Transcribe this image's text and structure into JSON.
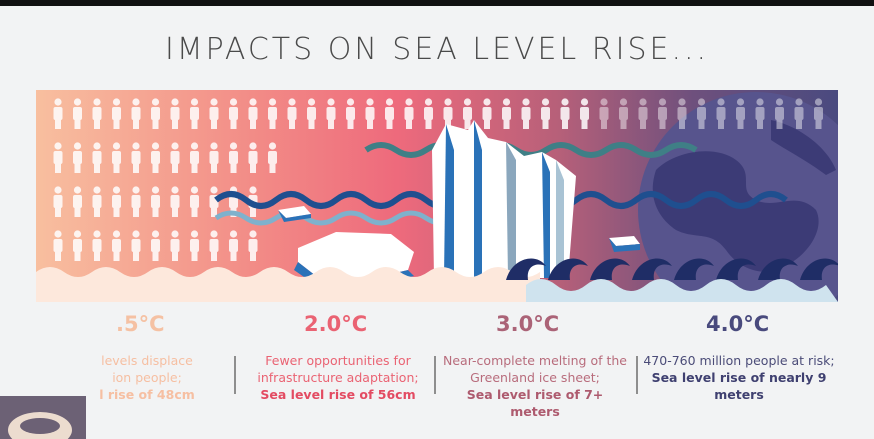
{
  "title": "IMPACTS ON SEA LEVEL RISE...",
  "colors": {
    "peach": "#f6b69a",
    "pink": "#ee6a7c",
    "mauve": "#a9607a",
    "indigo": "#4a4a7f",
    "wave_dark": "#1f2d66",
    "wave_light": "#cfe3ee"
  },
  "scenarios": [
    {
      "temp": ".5°C",
      "lines": [
        "levels displace",
        "ion people;"
      ],
      "emphasis": "l rise of 48cm"
    },
    {
      "temp": "2.0°C",
      "lines": [
        "Fewer opportunities for",
        "infrastructure adaptation;"
      ],
      "emphasis": "Sea level rise of 56cm"
    },
    {
      "temp": "3.0°C",
      "lines": [
        "Near-complete melting of the",
        "Greenland ice sheet;"
      ],
      "emphasis": "Sea level rise of 7+ meters"
    },
    {
      "temp": "4.0°C",
      "lines": [
        "470-760 million people at risk;"
      ],
      "emphasis": "Sea level rise of nearly 9 meters"
    }
  ],
  "icons": [
    "person-icon",
    "wave-icon",
    "iceberg-icon",
    "ice-floe-icon",
    "globe-icon"
  ]
}
